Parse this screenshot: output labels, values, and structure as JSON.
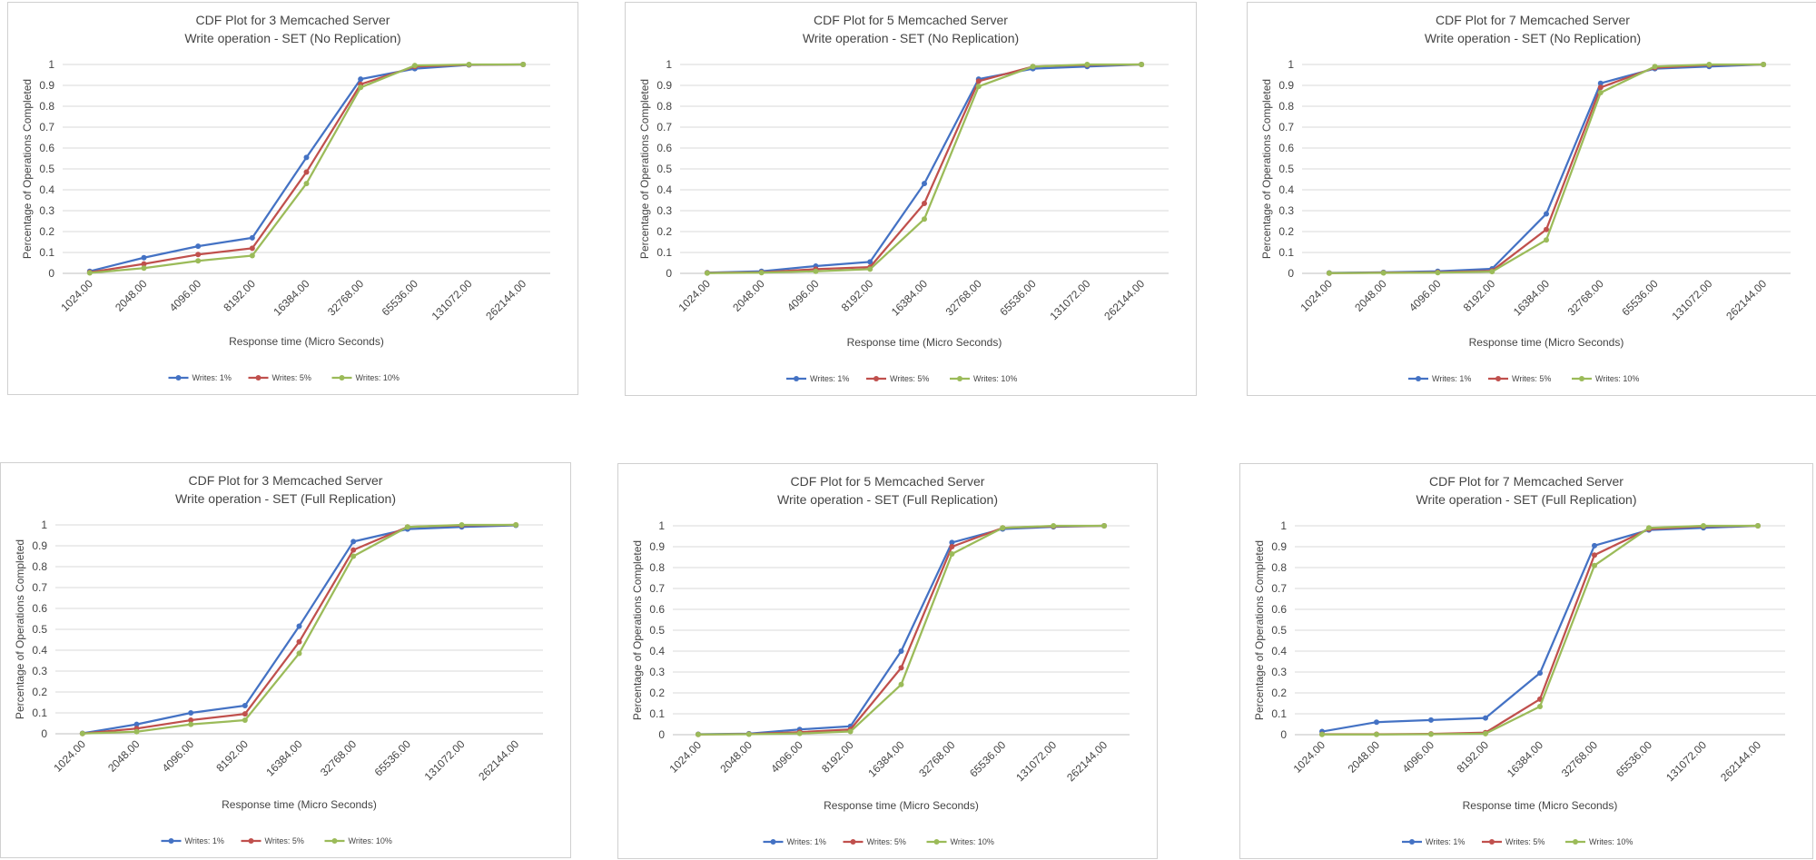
{
  "colors": {
    "writes_1": "#4472C4",
    "writes_5": "#C0504D",
    "writes_10": "#9BBB59"
  },
  "chart_data": [
    {
      "type": "line",
      "title": [
        "CDF Plot for 3 Memcached Server",
        "Write operation - SET (No Replication)"
      ],
      "xlabel": "Response time (Micro Seconds)",
      "ylabel": "Percentage of Operations Completed",
      "categories": [
        "1024.00",
        "2048.00",
        "4096.00",
        "8192.00",
        "16384.00",
        "32768.00",
        "65536.00",
        "131072.00",
        "262144.00"
      ],
      "yticks": [
        "0",
        "0.1",
        "0.2",
        "0.3",
        "0.4",
        "0.5",
        "0.6",
        "0.7",
        "0.8",
        "0.9",
        "1"
      ],
      "ylim": [
        0,
        1
      ],
      "grid": true,
      "legend_position": "bottom",
      "series": [
        {
          "name": "Writes: 1%",
          "color": "#4472C4",
          "values": [
            0.01,
            0.075,
            0.13,
            0.17,
            0.555,
            0.93,
            0.98,
            0.998,
            1.0
          ]
        },
        {
          "name": "Writes: 5%",
          "color": "#C0504D",
          "values": [
            0.005,
            0.045,
            0.09,
            0.12,
            0.485,
            0.905,
            0.99,
            0.999,
            1.0
          ]
        },
        {
          "name": "Writes: 10%",
          "color": "#9BBB59",
          "values": [
            0.002,
            0.025,
            0.06,
            0.085,
            0.43,
            0.89,
            0.995,
            1.0,
            1.0
          ]
        }
      ]
    },
    {
      "type": "line",
      "title": [
        "CDF Plot for 5 Memcached Server",
        "Write operation - SET (No Replication)"
      ],
      "xlabel": "Response time (Micro Seconds)",
      "ylabel": "Percentage of Operations Completed",
      "categories": [
        "1024.00",
        "2048.00",
        "4096.00",
        "8192.00",
        "16384.00",
        "32768.00",
        "65536.00",
        "131072.00",
        "262144.00"
      ],
      "yticks": [
        "0",
        "0.1",
        "0.2",
        "0.3",
        "0.4",
        "0.5",
        "0.6",
        "0.7",
        "0.8",
        "0.9",
        "1"
      ],
      "ylim": [
        0,
        1
      ],
      "grid": true,
      "legend_position": "bottom",
      "series": [
        {
          "name": "Writes: 1%",
          "color": "#4472C4",
          "values": [
            0.003,
            0.01,
            0.035,
            0.055,
            0.43,
            0.93,
            0.98,
            0.99,
            1.0
          ]
        },
        {
          "name": "Writes: 5%",
          "color": "#C0504D",
          "values": [
            0.002,
            0.005,
            0.02,
            0.03,
            0.335,
            0.92,
            0.99,
            0.998,
            1.0
          ]
        },
        {
          "name": "Writes: 10%",
          "color": "#9BBB59",
          "values": [
            0.001,
            0.003,
            0.01,
            0.02,
            0.26,
            0.895,
            0.99,
            1.0,
            1.0
          ]
        }
      ]
    },
    {
      "type": "line",
      "title": [
        "CDF Plot for 7 Memcached Server",
        "Write operation - SET (No Replication)"
      ],
      "xlabel": "Response time (Micro Seconds)",
      "ylabel": "Percentage of Operations Completed",
      "categories": [
        "1024.00",
        "2048.00",
        "4096.00",
        "8192.00",
        "16384.00",
        "32768.00",
        "65536.00",
        "131072.00",
        "262144.00"
      ],
      "yticks": [
        "0",
        "0.1",
        "0.2",
        "0.3",
        "0.4",
        "0.5",
        "0.6",
        "0.7",
        "0.8",
        "0.9",
        "1"
      ],
      "ylim": [
        0,
        1
      ],
      "grid": true,
      "legend_position": "bottom",
      "series": [
        {
          "name": "Writes: 1%",
          "color": "#4472C4",
          "values": [
            0.002,
            0.005,
            0.01,
            0.022,
            0.285,
            0.91,
            0.98,
            0.99,
            1.0
          ]
        },
        {
          "name": "Writes: 5%",
          "color": "#C0504D",
          "values": [
            0.001,
            0.003,
            0.005,
            0.012,
            0.21,
            0.89,
            0.985,
            0.998,
            1.0
          ]
        },
        {
          "name": "Writes: 10%",
          "color": "#9BBB59",
          "values": [
            0.001,
            0.002,
            0.003,
            0.008,
            0.16,
            0.865,
            0.99,
            1.0,
            1.0
          ]
        }
      ]
    },
    {
      "type": "line",
      "title": [
        "CDF Plot for 3 Memcached Server",
        "Write operation - SET (Full Replication)"
      ],
      "xlabel": "Response time (Micro Seconds)",
      "ylabel": "Percentage of Operations Completed",
      "categories": [
        "1024.00",
        "2048.00",
        "4096.00",
        "8192.00",
        "16384.00",
        "32768.00",
        "65536.00",
        "131072.00",
        "262144.00"
      ],
      "yticks": [
        "0",
        "0.1",
        "0.2",
        "0.3",
        "0.4",
        "0.5",
        "0.6",
        "0.7",
        "0.8",
        "0.9",
        "1"
      ],
      "ylim": [
        0,
        1
      ],
      "grid": true,
      "legend_position": "bottom",
      "series": [
        {
          "name": "Writes: 1%",
          "color": "#4472C4",
          "values": [
            0.002,
            0.045,
            0.1,
            0.135,
            0.515,
            0.92,
            0.98,
            0.99,
            0.998
          ]
        },
        {
          "name": "Writes: 5%",
          "color": "#C0504D",
          "values": [
            0.001,
            0.025,
            0.065,
            0.095,
            0.44,
            0.88,
            0.99,
            0.998,
            1.0
          ]
        },
        {
          "name": "Writes: 10%",
          "color": "#9BBB59",
          "values": [
            0.001,
            0.01,
            0.045,
            0.065,
            0.385,
            0.85,
            0.99,
            1.0,
            1.0
          ]
        }
      ]
    },
    {
      "type": "line",
      "title": [
        "CDF Plot for 5 Memcached Server",
        "Write operation - SET (Full Replication)"
      ],
      "xlabel": "Response time (Micro Seconds)",
      "ylabel": "Percentage of Operations Completed",
      "categories": [
        "1024.00",
        "2048.00",
        "4096.00",
        "8192.00",
        "16384.00",
        "32768.00",
        "65536.00",
        "131072.00",
        "262144.00"
      ],
      "yticks": [
        "0",
        "0.1",
        "0.2",
        "0.3",
        "0.4",
        "0.5",
        "0.6",
        "0.7",
        "0.8",
        "0.9",
        "1"
      ],
      "ylim": [
        0,
        1
      ],
      "grid": true,
      "legend_position": "bottom",
      "series": [
        {
          "name": "Writes: 1%",
          "color": "#4472C4",
          "values": [
            0.002,
            0.005,
            0.025,
            0.04,
            0.4,
            0.92,
            0.985,
            0.995,
            1.0
          ]
        },
        {
          "name": "Writes: 5%",
          "color": "#C0504D",
          "values": [
            0.001,
            0.003,
            0.012,
            0.025,
            0.32,
            0.9,
            0.99,
            0.998,
            1.0
          ]
        },
        {
          "name": "Writes: 10%",
          "color": "#9BBB59",
          "values": [
            0.001,
            0.002,
            0.006,
            0.015,
            0.24,
            0.865,
            0.99,
            1.0,
            1.0
          ]
        }
      ]
    },
    {
      "type": "line",
      "title": [
        "CDF Plot for 7 Memcached Server",
        "Write operation - SET (Full Replication)"
      ],
      "xlabel": "Response time (Micro Seconds)",
      "ylabel": "Percentage of Operations Completed",
      "categories": [
        "1024.00",
        "2048.00",
        "4096.00",
        "8192.00",
        "16384.00",
        "32768.00",
        "65536.00",
        "131072.00",
        "262144.00"
      ],
      "yticks": [
        "0",
        "0.1",
        "0.2",
        "0.3",
        "0.4",
        "0.5",
        "0.6",
        "0.7",
        "0.8",
        "0.9",
        "1"
      ],
      "ylim": [
        0,
        1
      ],
      "grid": true,
      "legend_position": "bottom",
      "series": [
        {
          "name": "Writes: 1%",
          "color": "#4472C4",
          "values": [
            0.015,
            0.06,
            0.07,
            0.08,
            0.295,
            0.905,
            0.98,
            0.99,
            1.0
          ]
        },
        {
          "name": "Writes: 5%",
          "color": "#C0504D",
          "values": [
            0.002,
            0.002,
            0.004,
            0.01,
            0.17,
            0.86,
            0.985,
            0.998,
            1.0
          ]
        },
        {
          "name": "Writes: 10%",
          "color": "#9BBB59",
          "values": [
            0.001,
            0.001,
            0.002,
            0.005,
            0.135,
            0.81,
            0.99,
            1.0,
            1.0
          ]
        }
      ]
    }
  ]
}
